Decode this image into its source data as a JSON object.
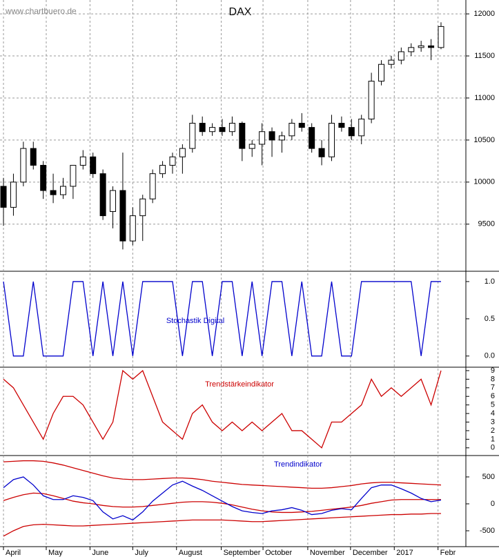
{
  "chart_data": [
    {
      "type": "candlestick",
      "title": "DAX",
      "subtitle": "www.chartbuero.de",
      "ylim": [
        8940,
        12165
      ],
      "yticks": [
        9500,
        10000,
        10500,
        11000,
        11500,
        12000
      ],
      "grid": true,
      "open": [
        9950,
        9700,
        10000,
        10400,
        10200,
        9900,
        9850,
        9950,
        10200,
        10300,
        10100,
        9650,
        9900,
        9300,
        9600,
        9800,
        10100,
        10200,
        10300,
        10400,
        10700,
        10600,
        10650,
        10600,
        10700,
        10400,
        10450,
        10600,
        10500,
        10550,
        10700,
        10650,
        10400,
        10300,
        10700,
        10650,
        10550,
        10750,
        11200,
        11400,
        11450,
        11550,
        11600,
        11620,
        11600
      ],
      "high": [
        10050,
        10100,
        10480,
        10480,
        10250,
        10100,
        10050,
        10200,
        10380,
        10350,
        10150,
        9950,
        10350,
        9700,
        9850,
        10150,
        10250,
        10350,
        10450,
        10800,
        10780,
        10700,
        10750,
        10780,
        10720,
        10500,
        10700,
        10650,
        10600,
        10750,
        10820,
        10700,
        10500,
        10800,
        10780,
        10750,
        10800,
        11300,
        11450,
        11500,
        11600,
        11650,
        11680,
        11700,
        11900
      ],
      "low": [
        9480,
        9600,
        9950,
        10150,
        9800,
        9750,
        9800,
        9800,
        10150,
        10050,
        9550,
        9450,
        9200,
        9250,
        9300,
        9750,
        10050,
        10100,
        10100,
        10350,
        10550,
        10550,
        10550,
        10550,
        10250,
        10300,
        10200,
        10300,
        10350,
        10500,
        10600,
        10350,
        10200,
        10250,
        10600,
        10500,
        10450,
        10700,
        11150,
        11350,
        11400,
        11500,
        11550,
        11450,
        11580
      ],
      "close": [
        9700,
        10000,
        10400,
        10200,
        9900,
        9850,
        9950,
        10200,
        10300,
        10100,
        9600,
        9900,
        9300,
        9600,
        9800,
        10100,
        10200,
        10300,
        10400,
        10700,
        10600,
        10650,
        10600,
        10700,
        10400,
        10450,
        10600,
        10500,
        10550,
        10700,
        10650,
        10400,
        10300,
        10700,
        10650,
        10550,
        10750,
        11200,
        11400,
        11450,
        11550,
        11600,
        11620,
        11600,
        11850
      ]
    },
    {
      "type": "line",
      "title": "Stochastik Digital",
      "color": "#0000cc",
      "ylim": [
        -0.15,
        1.12
      ],
      "yticks": [
        {
          "value": 0,
          "label": "0.0"
        },
        {
          "value": 0.5,
          "label": "0.5"
        },
        {
          "value": 1,
          "label": "1.0"
        }
      ],
      "values": [
        1,
        0,
        0,
        1,
        0,
        0,
        0,
        1,
        1,
        0,
        1,
        0,
        1,
        0,
        1,
        1,
        1,
        1,
        0,
        1,
        1,
        0,
        1,
        1,
        0,
        1,
        0,
        1,
        1,
        0,
        1,
        0,
        0,
        1,
        0,
        0,
        1,
        1,
        1,
        1,
        1,
        1,
        0,
        1,
        1
      ]
    },
    {
      "type": "line",
      "title": "Trendstärkeindikator",
      "color": "#cc0000",
      "ylim": [
        -0.9,
        9.4
      ],
      "yticks": [
        0,
        1,
        2,
        3,
        4,
        5,
        6,
        7,
        8,
        9
      ],
      "values": [
        8,
        7,
        5,
        3,
        1,
        4,
        6,
        6,
        5,
        3,
        1,
        3,
        9,
        8,
        9,
        6,
        3,
        2,
        1,
        4,
        5,
        3,
        2,
        3,
        2,
        3,
        2,
        3,
        4,
        2,
        2,
        1,
        0,
        3,
        3,
        4,
        5,
        8,
        6,
        7,
        6,
        7,
        8,
        5,
        9
      ]
    },
    {
      "type": "multiline",
      "title": "Trendindikator",
      "ylim": [
        -795,
        897
      ],
      "yticks": [
        -500,
        0,
        500
      ],
      "xlim": [
        -0.35,
        46.5
      ],
      "xticks": [
        {
          "value": 0,
          "label": "April"
        },
        {
          "value": 4.3,
          "label": "May"
        },
        {
          "value": 8.7,
          "label": "June"
        },
        {
          "value": 13,
          "label": "July"
        },
        {
          "value": 17.4,
          "label": "August"
        },
        {
          "value": 21.9,
          "label": "September"
        },
        {
          "value": 26.1,
          "label": "October"
        },
        {
          "value": 30.6,
          "label": "November"
        },
        {
          "value": 34.9,
          "label": "December"
        },
        {
          "value": 39.3,
          "label": "2017"
        },
        {
          "value": 43.7,
          "label": "Febr"
        }
      ],
      "series": [
        {
          "color": "#cc0000",
          "values": [
            780,
            790,
            800,
            800,
            790,
            760,
            720,
            670,
            620,
            570,
            520,
            480,
            460,
            450,
            450,
            460,
            470,
            480,
            480,
            470,
            450,
            420,
            400,
            380,
            360,
            350,
            340,
            330,
            320,
            310,
            300,
            290,
            290,
            300,
            320,
            340,
            370,
            390,
            400,
            400,
            390,
            380,
            370,
            360,
            350
          ]
        },
        {
          "color": "#cc0000",
          "values": [
            60,
            120,
            170,
            200,
            190,
            150,
            100,
            50,
            20,
            0,
            -30,
            -50,
            -60,
            -60,
            -50,
            -30,
            -10,
            10,
            30,
            40,
            40,
            30,
            10,
            -20,
            -60,
            -100,
            -130,
            -150,
            -160,
            -160,
            -150,
            -140,
            -120,
            -100,
            -80,
            -60,
            -30,
            10,
            40,
            70,
            80,
            80,
            80,
            80,
            80
          ]
        },
        {
          "color": "#cc0000",
          "values": [
            -600,
            -500,
            -420,
            -390,
            -380,
            -390,
            -400,
            -410,
            -410,
            -400,
            -390,
            -380,
            -370,
            -360,
            -350,
            -340,
            -330,
            -320,
            -310,
            -300,
            -300,
            -300,
            -300,
            -310,
            -320,
            -330,
            -330,
            -320,
            -310,
            -300,
            -290,
            -280,
            -270,
            -260,
            -250,
            -240,
            -230,
            -220,
            -210,
            -200,
            -200,
            -190,
            -190,
            -180,
            -180
          ]
        },
        {
          "color": "#0000cc",
          "values": [
            300,
            450,
            500,
            350,
            150,
            80,
            80,
            150,
            120,
            60,
            -150,
            -280,
            -220,
            -300,
            -150,
            50,
            200,
            350,
            420,
            330,
            250,
            150,
            50,
            -50,
            -130,
            -160,
            -180,
            -130,
            -110,
            -70,
            -120,
            -200,
            -180,
            -120,
            -90,
            -110,
            100,
            300,
            350,
            350,
            280,
            200,
            100,
            40,
            70
          ]
        }
      ]
    }
  ]
}
